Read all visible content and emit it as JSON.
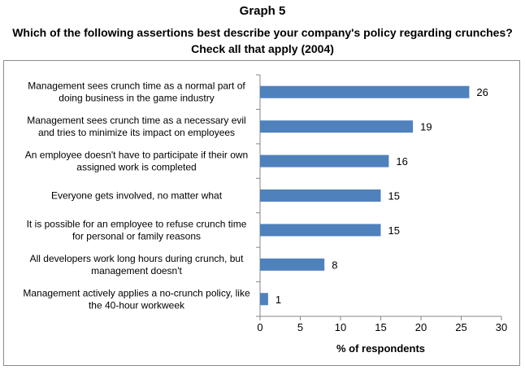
{
  "chart_data": {
    "type": "bar",
    "orientation": "horizontal",
    "graph_label": "Graph 5",
    "title_lines": [
      "Which of the following assertions best describe your company's policy regarding crunches?",
      "Check all that apply (2004)"
    ],
    "categories": [
      [
        "Management sees crunch time as a normal part of",
        "doing business in the game industry"
      ],
      [
        "Management sees crunch time as a necessary evil",
        "and tries to minimize its impact on employees"
      ],
      [
        "An employee doesn't have to participate if their own",
        "assigned work is completed"
      ],
      [
        "Everyone gets involved, no matter what"
      ],
      [
        "It is possible for an employee to refuse crunch time",
        "for personal or family reasons"
      ],
      [
        "All developers work long hours during crunch, but",
        "management doesn't"
      ],
      [
        "Management actively applies a no-crunch policy, like",
        "the 40-hour workweek"
      ]
    ],
    "values": [
      26,
      19,
      16,
      15,
      15,
      8,
      1
    ],
    "xlabel": "% of respondents",
    "xlim": [
      0,
      30
    ],
    "xticks": [
      0,
      5,
      10,
      15,
      20,
      25,
      30
    ],
    "bar_color": "#4f81bd",
    "gridlines": false,
    "legend": "none"
  }
}
